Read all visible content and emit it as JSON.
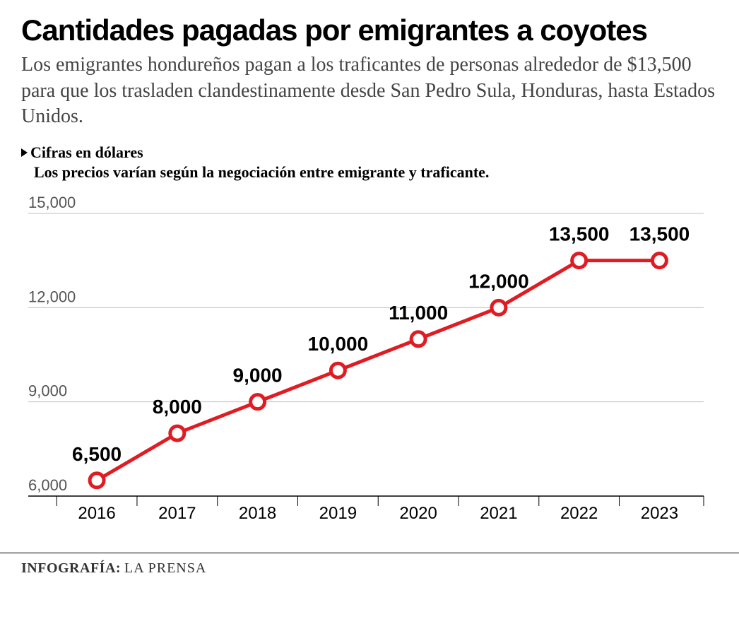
{
  "title": "Cantidades pagadas por emigrantes a coyotes",
  "subtitle": "Los emigrantes hondureños pagan a los traficantes de personas alrededor de $13,500 para que los trasladen clandestinamente desde San Pedro Sula, Honduras, hasta Estados Unidos.",
  "legend": {
    "label": "Cifras en dólares",
    "note": "Los precios varían según la negociación entre emigrante y traficante."
  },
  "credit": {
    "label": "INFOGRAFÍA:",
    "value": "LA PRENSA"
  },
  "chart": {
    "type": "line",
    "line_color": "#e01b22",
    "line_width": 5,
    "marker_outer": "#e01b22",
    "marker_inner": "#ffffff",
    "marker_radius": 10,
    "marker_stroke": 5,
    "background": "#ffffff",
    "grid_color": "#bfbfbf",
    "axis_color": "#000000",
    "tick_font_color": "#555555",
    "xtick_font_color": "#000000",
    "label_font_color": "#000000",
    "ylim": [
      6000,
      15000
    ],
    "yticks": [
      {
        "v": 15000,
        "label": "15,000"
      },
      {
        "v": 12000,
        "label": "12,000"
      },
      {
        "v": 9000,
        "label": "9,000"
      },
      {
        "v": 6000,
        "label": "6,000"
      }
    ],
    "points": [
      {
        "x": "2016",
        "y": 6500,
        "label": "6,500"
      },
      {
        "x": "2017",
        "y": 8000,
        "label": "8,000"
      },
      {
        "x": "2018",
        "y": 9000,
        "label": "9,000"
      },
      {
        "x": "2019",
        "y": 10000,
        "label": "10,000"
      },
      {
        "x": "2020",
        "y": 11000,
        "label": "11,000"
      },
      {
        "x": "2021",
        "y": 12000,
        "label": "12,000"
      },
      {
        "x": "2022",
        "y": 13500,
        "label": "13,500"
      },
      {
        "x": "2023",
        "y": 13500,
        "label": "13,500"
      }
    ]
  }
}
